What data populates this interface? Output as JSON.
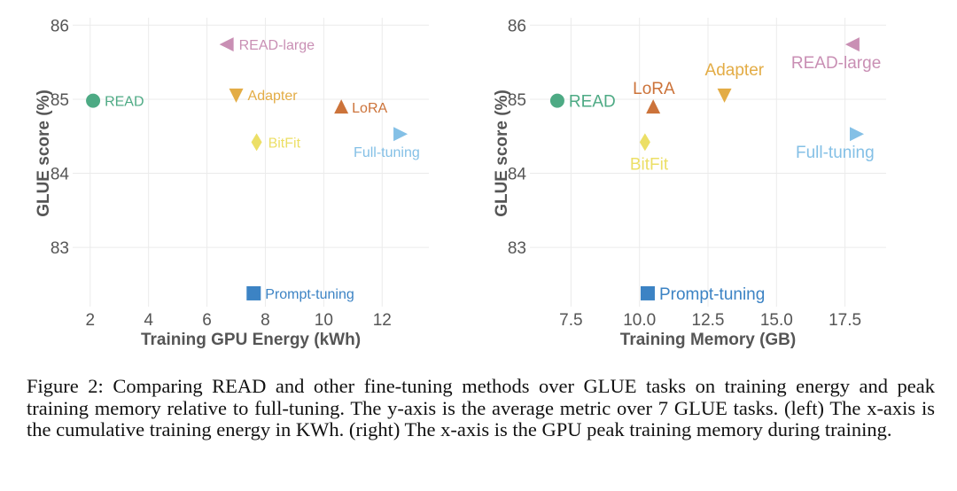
{
  "chart_data": [
    {
      "type": "scatter",
      "xlabel": "Training GPU Energy (kWh)",
      "ylabel": "GLUE score (%)",
      "xlim": [
        1.4,
        13.6
      ],
      "ylim": [
        82.2,
        86.1
      ],
      "xticks": [
        "2",
        "4",
        "6",
        "8",
        "10",
        "12"
      ],
      "yticks": [
        "83",
        "84",
        "85",
        "86"
      ],
      "grid": true,
      "points": [
        {
          "label": "READ",
          "x": 2.1,
          "y": 84.98,
          "marker": "circle",
          "color": "#4daa84"
        },
        {
          "label": "READ-large",
          "x": 6.7,
          "y": 85.74,
          "marker": "triangle-left",
          "color": "#c98fb4"
        },
        {
          "label": "Adapter",
          "x": 7.0,
          "y": 85.06,
          "marker": "triangle-down",
          "color": "#e3ac45"
        },
        {
          "label": "LoRA",
          "x": 10.6,
          "y": 84.89,
          "marker": "triangle-up",
          "color": "#cc733a"
        },
        {
          "label": "BitFit",
          "x": 7.7,
          "y": 84.42,
          "marker": "diamond",
          "color": "#ecdf66"
        },
        {
          "label": "Full-tuning",
          "x": 12.6,
          "y": 84.53,
          "marker": "triangle-right",
          "color": "#84c0e6"
        },
        {
          "label": "Prompt-tuning",
          "x": 7.6,
          "y": 82.38,
          "marker": "square",
          "color": "#3c83c4"
        }
      ]
    },
    {
      "type": "scatter",
      "xlabel": "Training Memory (GB)",
      "ylabel": "GLUE score (%)",
      "xlim": [
        6.0,
        19.0
      ],
      "ylim": [
        82.2,
        86.1
      ],
      "xticks": [
        "7.5",
        "10.0",
        "12.5",
        "15.0",
        "17.5"
      ],
      "yticks": [
        "83",
        "84",
        "85",
        "86"
      ],
      "grid": true,
      "points": [
        {
          "label": "READ",
          "x": 7.0,
          "y": 84.98,
          "marker": "circle",
          "color": "#4daa84"
        },
        {
          "label": "READ-large",
          "x": 17.8,
          "y": 85.74,
          "marker": "triangle-left",
          "color": "#c98fb4"
        },
        {
          "label": "Adapter",
          "x": 13.1,
          "y": 85.06,
          "marker": "triangle-down",
          "color": "#e3ac45"
        },
        {
          "label": "LoRA",
          "x": 10.5,
          "y": 84.89,
          "marker": "triangle-up",
          "color": "#cc733a"
        },
        {
          "label": "BitFit",
          "x": 10.2,
          "y": 84.42,
          "marker": "diamond",
          "color": "#ecdf66"
        },
        {
          "label": "Full-tuning",
          "x": 17.9,
          "y": 84.53,
          "marker": "triangle-right",
          "color": "#84c0e6"
        },
        {
          "label": "Prompt-tuning",
          "x": 10.3,
          "y": 82.38,
          "marker": "square",
          "color": "#3c83c4"
        }
      ]
    }
  ],
  "caption": "Figure 2: Comparing READ and other fine-tuning methods over GLUE tasks on training energy and peak training memory relative to full-tuning. The y-axis is the average metric over 7 GLUE tasks. (left) The x-axis is the cumulative training energy in KWh. (right) The x-axis is the GPU peak training memory during training."
}
